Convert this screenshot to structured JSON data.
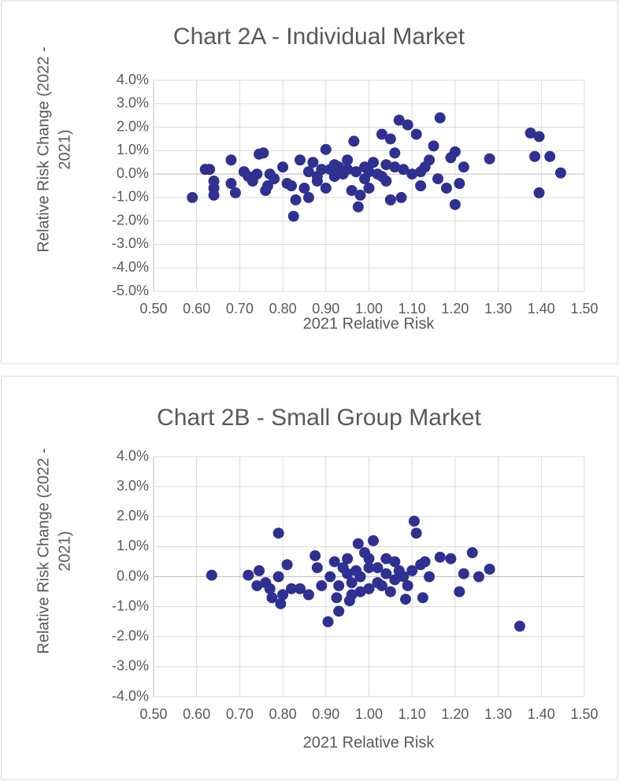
{
  "chart_data": [
    {
      "type": "scatter",
      "title": "Chart 2A - Individual Market",
      "x_label": "2021 Relative Risk",
      "y_label": [
        "Relative Risk Change (2022 -",
        "2021)"
      ],
      "color": "#2e3192",
      "grid": true,
      "xlim": [
        0.5,
        1.5
      ],
      "ylim": [
        -5,
        4
      ],
      "xticks": [
        {
          "value": 0.5,
          "label": "0.50"
        },
        {
          "value": 0.6,
          "label": "0.60"
        },
        {
          "value": 0.7,
          "label": "0.70"
        },
        {
          "value": 0.8,
          "label": "0.80"
        },
        {
          "value": 0.9,
          "label": "0.90"
        },
        {
          "value": 1.0,
          "label": "1.00"
        },
        {
          "value": 1.1,
          "label": "1.10"
        },
        {
          "value": 1.2,
          "label": "1.20"
        },
        {
          "value": 1.3,
          "label": "1.30"
        },
        {
          "value": 1.4,
          "label": "1.40"
        },
        {
          "value": 1.5,
          "label": "1.50"
        }
      ],
      "yticks": [
        {
          "value": 4,
          "label": "4.0%"
        },
        {
          "value": 3,
          "label": "3.0%"
        },
        {
          "value": 2,
          "label": "2.0%"
        },
        {
          "value": 1,
          "label": "1.0%"
        },
        {
          "value": 0,
          "label": "0.0%"
        },
        {
          "value": -1,
          "label": "-1.0%"
        },
        {
          "value": -2,
          "label": "-2.0%"
        },
        {
          "value": -3,
          "label": "-3.0%"
        },
        {
          "value": -4,
          "label": "-4.0%"
        },
        {
          "value": -5,
          "label": "-5.0%"
        }
      ],
      "x": [
        0.59,
        0.62,
        0.63,
        0.64,
        0.64,
        0.64,
        0.68,
        0.68,
        0.69,
        0.71,
        0.72,
        0.73,
        0.74,
        0.745,
        0.755,
        0.76,
        0.765,
        0.77,
        0.78,
        0.8,
        0.81,
        0.82,
        0.825,
        0.83,
        0.84,
        0.85,
        0.86,
        0.86,
        0.87,
        0.88,
        0.89,
        0.9,
        0.9,
        0.91,
        0.92,
        0.93,
        0.94,
        0.95,
        0.96,
        0.965,
        0.975,
        0.98,
        0.99,
        1.0,
        1.01,
        1.02,
        1.03,
        1.04,
        1.05,
        1.05,
        1.06,
        1.07,
        1.075,
        1.08,
        1.09,
        1.1,
        1.11,
        1.12,
        1.13,
        1.14,
        1.15,
        1.16,
        1.165,
        1.18,
        1.19,
        1.2,
        1.2,
        1.21,
        1.22,
        1.28,
        1.375,
        1.385,
        1.395,
        1.395,
        1.42,
        1.445,
        0.95,
        0.97,
        1.0,
        1.03,
        1.06,
        0.92,
        0.88,
        1.12,
        0.99,
        1.04
      ],
      "y": [
        -1.0,
        0.2,
        0.2,
        -0.3,
        -0.6,
        -0.9,
        0.6,
        -0.4,
        -0.8,
        0.1,
        -0.1,
        -0.3,
        0.0,
        0.85,
        0.9,
        -0.7,
        -0.5,
        0.0,
        -0.2,
        0.3,
        -0.4,
        -0.5,
        -1.8,
        -1.1,
        0.6,
        -0.6,
        -1.0,
        0.1,
        0.5,
        -0.3,
        0.2,
        -0.6,
        1.05,
        0.2,
        -0.1,
        0.3,
        0.0,
        0.6,
        -0.7,
        1.4,
        -1.4,
        -0.9,
        0.3,
        -0.6,
        0.5,
        0.0,
        1.7,
        -0.3,
        1.5,
        -1.1,
        0.9,
        2.3,
        -1.0,
        0.2,
        2.1,
        0.0,
        1.7,
        -0.5,
        0.3,
        0.6,
        1.2,
        -0.2,
        2.4,
        -0.6,
        0.7,
        0.95,
        -1.3,
        -0.4,
        0.3,
        0.65,
        1.75,
        0.75,
        1.6,
        -0.8,
        0.75,
        0.05,
        0.2,
        0.1,
        0.1,
        -0.1,
        0.3,
        0.4,
        -0.1,
        0.1,
        -0.2,
        0.4
      ]
    },
    {
      "type": "scatter",
      "title": "Chart 2B - Small Group Market",
      "x_label": "2021 Relative Risk",
      "y_label": [
        "Relative Risk Change (2022 -",
        "2021)"
      ],
      "color": "#2e3192",
      "grid": true,
      "xlim": [
        0.5,
        1.5
      ],
      "ylim": [
        -4,
        4
      ],
      "xticks": [
        {
          "value": 0.5,
          "label": "0.50"
        },
        {
          "value": 0.6,
          "label": "0.60"
        },
        {
          "value": 0.7,
          "label": "0.70"
        },
        {
          "value": 0.8,
          "label": "0.80"
        },
        {
          "value": 0.9,
          "label": "0.90"
        },
        {
          "value": 1.0,
          "label": "1.00"
        },
        {
          "value": 1.1,
          "label": "1.10"
        },
        {
          "value": 1.2,
          "label": "1.20"
        },
        {
          "value": 1.3,
          "label": "1.30"
        },
        {
          "value": 1.4,
          "label": "1.40"
        },
        {
          "value": 1.5,
          "label": "1.50"
        }
      ],
      "yticks": [
        {
          "value": 4,
          "label": "4.0%"
        },
        {
          "value": 3,
          "label": "3.0%"
        },
        {
          "value": 2,
          "label": "2.0%"
        },
        {
          "value": 1,
          "label": "1.0%"
        },
        {
          "value": 0,
          "label": "0.0%"
        },
        {
          "value": -1,
          "label": "-1.0%"
        },
        {
          "value": -2,
          "label": "-2.0%"
        },
        {
          "value": -3,
          "label": "-3.0%"
        },
        {
          "value": -4,
          "label": "-4.0%"
        }
      ],
      "x": [
        0.635,
        0.72,
        0.74,
        0.745,
        0.76,
        0.77,
        0.775,
        0.79,
        0.79,
        0.795,
        0.8,
        0.81,
        0.82,
        0.84,
        0.86,
        0.875,
        0.88,
        0.89,
        0.905,
        0.91,
        0.92,
        0.925,
        0.93,
        0.94,
        0.95,
        0.955,
        0.96,
        0.97,
        0.975,
        0.98,
        0.99,
        1.0,
        1.01,
        1.02,
        1.03,
        1.04,
        1.05,
        1.06,
        1.07,
        1.085,
        1.09,
        1.1,
        1.105,
        1.11,
        1.12,
        1.125,
        1.13,
        1.14,
        1.165,
        1.19,
        1.21,
        1.22,
        1.24,
        1.255,
        1.28,
        1.35,
        0.95,
        0.98,
        1.0,
        1.02,
        1.04,
        1.06,
        0.96,
        1.0,
        1.08,
        0.93
      ],
      "y": [
        0.05,
        0.05,
        -0.3,
        0.2,
        -0.2,
        -0.4,
        -0.7,
        1.45,
        0.0,
        -0.9,
        -0.6,
        0.4,
        -0.4,
        -0.4,
        -0.6,
        0.7,
        0.3,
        -0.3,
        -1.5,
        0.0,
        0.5,
        -0.7,
        -1.15,
        0.3,
        0.6,
        -0.8,
        -0.2,
        0.2,
        1.1,
        0.0,
        0.8,
        -0.4,
        1.2,
        0.3,
        -0.3,
        0.1,
        -0.5,
        0.5,
        0.2,
        -0.75,
        -0.3,
        0.2,
        1.85,
        1.45,
        0.4,
        -0.7,
        0.5,
        0.0,
        0.65,
        0.6,
        -0.5,
        0.1,
        0.8,
        0.0,
        0.25,
        -1.65,
        0.1,
        -0.5,
        0.3,
        -0.2,
        0.6,
        -0.1,
        -0.6,
        0.6,
        0.0,
        -0.3
      ]
    }
  ]
}
